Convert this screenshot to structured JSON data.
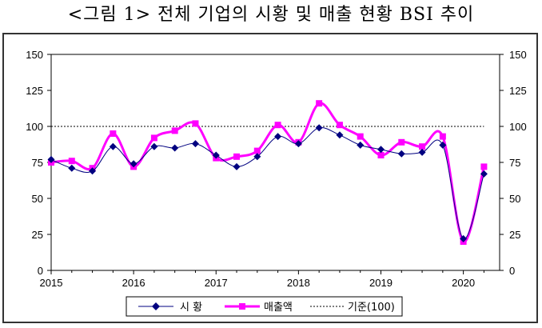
{
  "title": "<그림 1> 전체 기업의 시황 및 매출 현황 BSI 추이",
  "chart_data": {
    "type": "line",
    "title": "<그림 1> 전체 기업의 시황 및 매출 현황 BSI 추이",
    "xlabel": "",
    "ylabel": "",
    "ylim": [
      0,
      150
    ],
    "y_ticks": [
      0,
      25,
      50,
      75,
      100,
      125,
      150
    ],
    "x_tick_labels": [
      "2015",
      "2016",
      "2017",
      "2018",
      "2019",
      "2020"
    ],
    "grid": false,
    "legend_position": "bottom",
    "series": [
      {
        "name": "시 황",
        "color": "#000080",
        "marker": "diamond",
        "x": [
          2015.0,
          2015.25,
          2015.5,
          2015.75,
          2016.0,
          2016.25,
          2016.5,
          2016.75,
          2017.0,
          2017.25,
          2017.5,
          2017.75,
          2018.0,
          2018.25,
          2018.5,
          2018.75,
          2019.0,
          2019.25,
          2019.5,
          2019.75,
          2020.0,
          2020.25
        ],
        "values": [
          77,
          71,
          69,
          86,
          74,
          86,
          85,
          88,
          80,
          72,
          79,
          93,
          88,
          99,
          94,
          87,
          84,
          81,
          82,
          87,
          22,
          67
        ]
      },
      {
        "name": "매출액",
        "color": "#ff00ff",
        "marker": "square",
        "x": [
          2015.0,
          2015.25,
          2015.5,
          2015.75,
          2016.0,
          2016.25,
          2016.5,
          2016.75,
          2017.0,
          2017.25,
          2017.5,
          2017.75,
          2018.0,
          2018.25,
          2018.5,
          2018.75,
          2019.0,
          2019.25,
          2019.5,
          2019.75,
          2020.0,
          2020.25
        ],
        "values": [
          75,
          76,
          71,
          95,
          72,
          92,
          97,
          102,
          78,
          79,
          83,
          101,
          89,
          116,
          101,
          93,
          80,
          89,
          86,
          93,
          20,
          72
        ]
      },
      {
        "name": "기준(100)",
        "color": "#000000",
        "style": "dotted",
        "x": [
          2015.0,
          2020.25
        ],
        "values": [
          100,
          100
        ]
      }
    ]
  }
}
